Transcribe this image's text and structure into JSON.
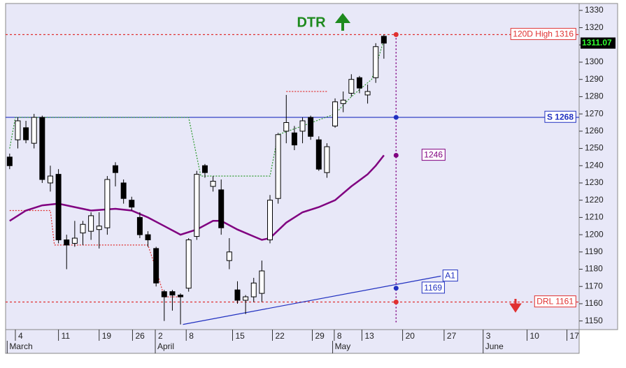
{
  "chart_data": {
    "type": "candlestick",
    "title": "DTR",
    "x": [
      0,
      1,
      2,
      3,
      4,
      5,
      6,
      7,
      8,
      9,
      10,
      11,
      12,
      13,
      14,
      15,
      16,
      17,
      18,
      19,
      20,
      21,
      22,
      23,
      24,
      25,
      26,
      27,
      28,
      29,
      30,
      31,
      32,
      33,
      34,
      35,
      36,
      37,
      38,
      39,
      40,
      41,
      42,
      43,
      44,
      45,
      46
    ],
    "open": [
      1245,
      1255,
      1262,
      1253,
      1268,
      1230,
      1235,
      1197,
      1195,
      1201,
      1202,
      1203,
      1204,
      1240,
      1230,
      1220,
      1210,
      1200,
      1192,
      1167,
      1167,
      1165,
      1169,
      1199,
      1240,
      1228,
      1226,
      1185,
      1168,
      1162,
      1164,
      1166,
      1197,
      1221,
      1260,
      1259,
      1260,
      1268,
      1255,
      1236,
      1263,
      1276,
      1282,
      1291,
      1281,
      1291,
      1315
    ],
    "high": [
      1247,
      1268,
      1266,
      1270,
      1269,
      1240,
      1238,
      1200,
      1208,
      1208,
      1213,
      1213,
      1234,
      1242,
      1232,
      1222,
      1213,
      1202,
      1193,
      1168,
      1168,
      1166,
      1198,
      1237,
      1241,
      1234,
      1232,
      1198,
      1173,
      1165,
      1175,
      1185,
      1223,
      1259,
      1281,
      1263,
      1268,
      1269,
      1257,
      1253,
      1279,
      1283,
      1293,
      1292,
      1287,
      1311,
      1316
    ],
    "low": [
      1238,
      1250,
      1253,
      1250,
      1230,
      1225,
      1195,
      1180,
      1193,
      1194,
      1197,
      1192,
      1200,
      1228,
      1218,
      1214,
      1198,
      1193,
      1170,
      1150,
      1156,
      1148,
      1167,
      1197,
      1233,
      1225,
      1200,
      1180,
      1160,
      1154,
      1161,
      1161,
      1195,
      1218,
      1253,
      1249,
      1253,
      1255,
      1237,
      1233,
      1262,
      1271,
      1280,
      1282,
      1276,
      1288,
      1302
    ],
    "close": [
      1240,
      1266,
      1255,
      1268,
      1232,
      1234,
      1197,
      1194,
      1198,
      1206,
      1211,
      1205,
      1232,
      1236,
      1221,
      1216,
      1200,
      1197,
      1172,
      1164,
      1165,
      1164,
      1197,
      1235,
      1236,
      1231,
      1204,
      1190,
      1162,
      1164,
      1172,
      1179,
      1220,
      1258,
      1265,
      1252,
      1266,
      1257,
      1238,
      1251,
      1277,
      1278,
      1290,
      1285,
      1283,
      1309,
      1311
    ],
    "xlim": [
      -0.5,
      70
    ],
    "ylim": [
      1145,
      1334
    ],
    "yticks": [
      1150,
      1160,
      1170,
      1180,
      1190,
      1200,
      1210,
      1220,
      1230,
      1240,
      1250,
      1260,
      1270,
      1280,
      1290,
      1300,
      1310,
      1320,
      1330
    ],
    "xticks": [
      {
        "value": 0.7,
        "label": "4"
      },
      {
        "value": 6,
        "label": "11"
      },
      {
        "value": 11,
        "label": "19"
      },
      {
        "value": 15.1,
        "label": "26"
      },
      {
        "value": 17.9,
        "label": "2"
      },
      {
        "value": 21.7,
        "label": "8"
      },
      {
        "value": 27.4,
        "label": "15"
      },
      {
        "value": 32.3,
        "label": "22"
      },
      {
        "value": 37.2,
        "label": "29"
      },
      {
        "value": 39.9,
        "label": "8"
      },
      {
        "value": 43.3,
        "label": "13"
      },
      {
        "value": 48.3,
        "label": "20"
      },
      {
        "value": 53.4,
        "label": "27"
      },
      {
        "value": 58.2,
        "label": "3"
      },
      {
        "value": 63.6,
        "label": "10"
      },
      {
        "value": 68.5,
        "label": "17"
      }
    ],
    "month_ticks": [
      {
        "value": -0.3,
        "label": "March"
      },
      {
        "value": 17.9,
        "label": "April"
      },
      {
        "value": 39.7,
        "label": "May"
      },
      {
        "value": 58.2,
        "label": "June"
      }
    ],
    "ma": {
      "color": "#800080",
      "x": [
        0,
        2,
        4,
        6,
        8,
        10,
        13,
        15,
        17,
        19,
        21,
        23,
        25,
        26,
        28,
        30,
        31,
        32,
        34,
        36,
        38,
        40,
        42,
        44,
        45,
        46
      ],
      "values": [
        1208,
        1214,
        1217,
        1218,
        1216,
        1214,
        1215,
        1214,
        1210,
        1205,
        1200,
        1203,
        1208,
        1208,
        1203,
        1199,
        1197,
        1198,
        1207,
        1213,
        1216,
        1220,
        1228,
        1235,
        1240,
        1246
      ]
    },
    "lines": [
      {
        "color": "#2e9a2e",
        "x": [
          0,
          0.7,
          22,
          23.5,
          32,
          33,
          36,
          40,
          42,
          44.5,
          45.5,
          46
        ],
        "values": [
          1250,
          1268,
          1268,
          1234,
          1234,
          1258,
          1263,
          1270,
          1280,
          1290,
          1305,
          1313
        ]
      },
      {
        "color": "#e03030",
        "x": [
          0,
          5,
          5.5,
          17,
          18,
          19,
          21,
          null,
          34,
          39
        ],
        "values": [
          1214,
          1214,
          1194,
          1194,
          1180,
          1164,
          1164,
          null,
          1283,
          1283
        ]
      }
    ],
    "levels": [
      {
        "label": "120D High 1316",
        "value": 1316,
        "color": "#e03030"
      },
      {
        "label": "S 1268",
        "value": 1268,
        "color": "#2030c0"
      },
      {
        "label": "DRL 1161",
        "value": 1161,
        "color": "#e03030"
      }
    ],
    "marker_x": 47.5,
    "markers": [
      {
        "value": 1316,
        "color": "#e03030"
      },
      {
        "value": 1268,
        "color": "#2030c0"
      },
      {
        "value": 1246,
        "color": "#800080",
        "label": "1246"
      },
      {
        "value": 1169,
        "color": "#2030c0",
        "label": "1169"
      },
      {
        "value": 1161,
        "color": "#e03030"
      }
    ],
    "trendline": {
      "label": "A1",
      "x": [
        21.3,
        53
      ],
      "values": [
        1148,
        1176
      ]
    },
    "last_price": {
      "label": "1311.07",
      "value": 1311.07
    }
  }
}
